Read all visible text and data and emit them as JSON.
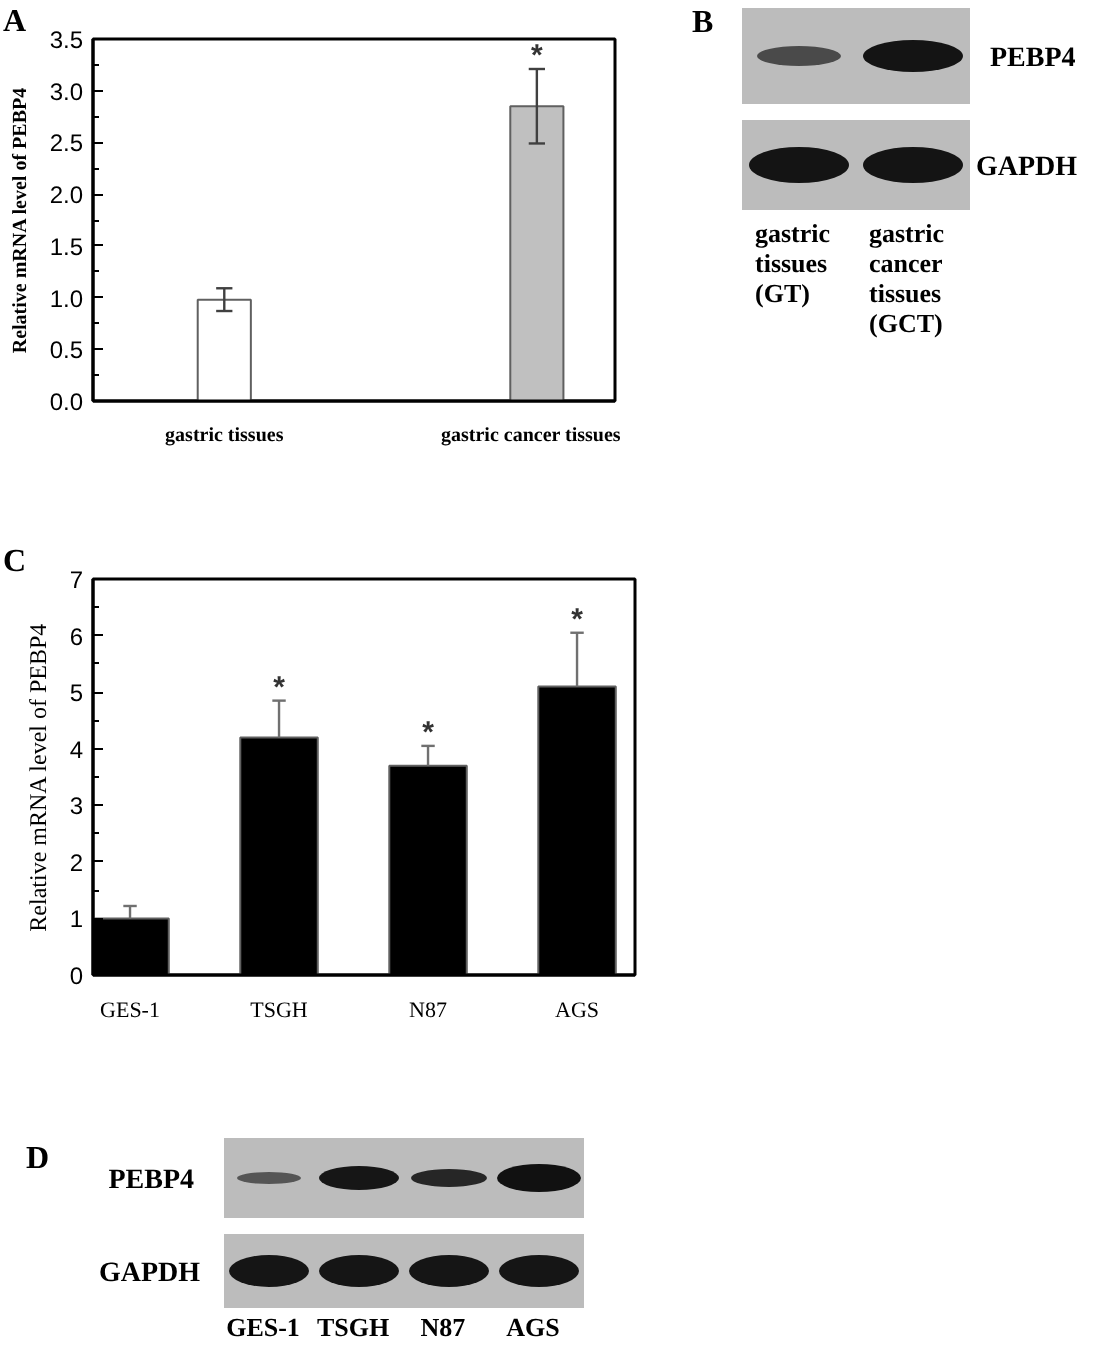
{
  "chart_data": [
    {
      "type": "bar",
      "title": "A",
      "categories": [
        "gastric tissues",
        "gastric cancer tissues"
      ],
      "values": [
        0.98,
        2.85
      ],
      "colors": [
        "#ffffff",
        "#c0c0c0"
      ],
      "errors": [
        0.11,
        0.36
      ],
      "ylabel": "Relative mRNA level of PEBP4",
      "ylim": [
        0,
        3.5
      ],
      "yticks": [
        {
          "value": 0,
          "label": "0.0"
        },
        {
          "value": 0.25,
          "label": null
        },
        {
          "value": 0.5,
          "label": "0.5"
        },
        {
          "value": 0.75,
          "label": null
        },
        {
          "value": 1,
          "label": "1.0"
        },
        {
          "value": 1.25,
          "label": null
        },
        {
          "value": 1.5,
          "label": "1.5"
        },
        {
          "value": 1.75,
          "label": null
        },
        {
          "value": 2,
          "label": "2.0"
        },
        {
          "value": 2.25,
          "label": null
        },
        {
          "value": 2.5,
          "label": "2.5"
        },
        {
          "value": 2.75,
          "label": null
        },
        {
          "value": 3,
          "label": "3.0"
        },
        {
          "value": 3.25,
          "label": null
        },
        {
          "value": 3.5,
          "label": "3.5"
        }
      ],
      "annotations": [
        {
          "text": "*",
          "x": "gastric cancer tissues",
          "y": 3.21
        }
      ]
    },
    {
      "type": "other",
      "title": "B",
      "categories": [
        "gastric tissues (GT)",
        "gastric cancer tissues (GCT)"
      ],
      "y_categories": [
        "PEBP4",
        "GAPDH"
      ]
    },
    {
      "type": "bar",
      "title": "C",
      "categories": [
        "GES-1",
        "TSGH",
        "N87",
        "AGS"
      ],
      "values": [
        1.0,
        4.2,
        3.7,
        5.1
      ],
      "colors": [
        "#000000",
        "#000000",
        "#000000",
        "#000000"
      ],
      "errors": [
        [
          1.0,
          1.22
        ],
        [
          4.2,
          4.85
        ],
        [
          3.7,
          4.05
        ],
        [
          5.1,
          6.05
        ]
      ],
      "ylabel": "Relative mRNA level of PEBP4",
      "ylim": [
        0,
        7
      ],
      "yticks": [
        0,
        {
          "value": 0.5,
          "label": null
        },
        1,
        {
          "value": 1.5,
          "label": null
        },
        2,
        {
          "value": 2.5,
          "label": null
        },
        3,
        {
          "value": 3.5,
          "label": null
        },
        4,
        {
          "value": 4.5,
          "label": null
        },
        5,
        {
          "value": 5.5,
          "label": null
        },
        6,
        {
          "value": 6.5,
          "label": null
        },
        7
      ],
      "annotations": [
        {
          "text": "*",
          "x": "TSGH",
          "y": 4.85
        },
        {
          "text": "*",
          "x": "N87",
          "y": 4.05
        },
        {
          "text": "*",
          "x": "AGS",
          "y": 6.05
        }
      ]
    },
    {
      "type": "other",
      "title": "D",
      "categories": [
        "GES-1",
        "TSGH",
        "N87",
        "AGS"
      ],
      "y_categories": [
        "PEBP4",
        "GAPDH"
      ]
    }
  ]
}
